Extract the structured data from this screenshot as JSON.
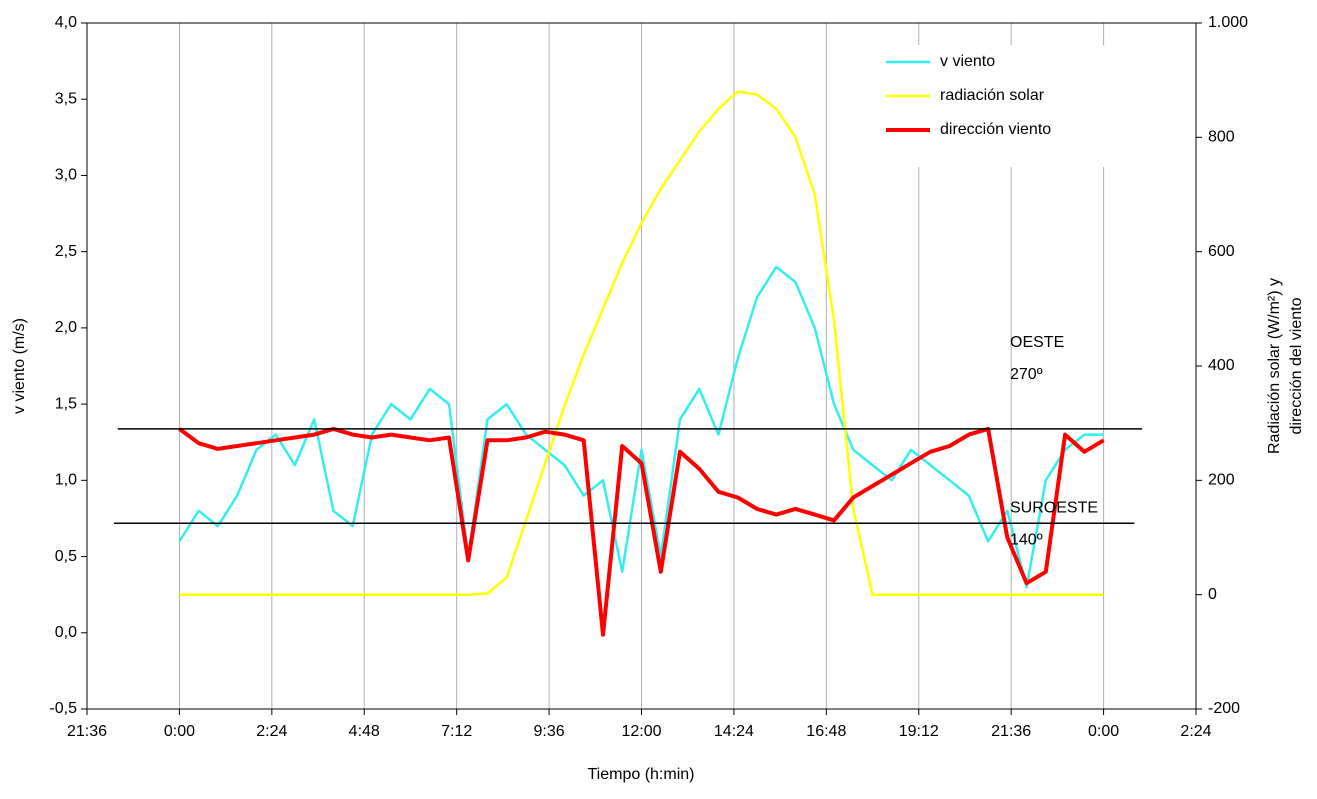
{
  "chart_data": {
    "type": "line",
    "x": [
      0,
      0.5,
      1,
      1.5,
      2,
      2.5,
      3,
      3.5,
      4,
      4.5,
      5,
      5.5,
      6,
      6.5,
      7,
      7.5,
      8,
      8.5,
      9,
      9.5,
      10,
      10.5,
      11,
      11.5,
      12,
      12.5,
      13,
      13.5,
      14,
      14.5,
      15,
      15.5,
      16,
      16.5,
      17,
      17.5,
      18,
      18.5,
      19,
      19.5,
      20,
      20.5,
      21,
      21.5,
      22,
      22.5,
      23,
      23.5,
      24
    ],
    "series": [
      {
        "name": "v viento",
        "color": "#33eeee",
        "values": [
          0.6,
          0.8,
          0.7,
          0.9,
          1.2,
          1.3,
          1.1,
          1.4,
          0.8,
          0.7,
          1.3,
          1.5,
          1.4,
          1.6,
          1.5,
          0.5,
          1.4,
          1.5,
          1.3,
          1.2,
          1.1,
          0.9,
          1.0,
          0.4,
          1.2,
          0.5,
          1.4,
          1.6,
          1.3,
          1.8,
          2.2,
          2.4,
          2.3,
          2.0,
          1.5,
          1.2,
          1.1,
          1.0,
          1.2,
          1.1,
          1.0,
          0.9,
          0.6,
          0.8,
          0.3,
          1.0,
          1.2,
          1.3,
          1.3
        ]
      },
      {
        "name": "radiación solar",
        "color": "#ffff00",
        "axis": "y2",
        "values": [
          0,
          0,
          0,
          0,
          0,
          0,
          0,
          0,
          0,
          0,
          0,
          0,
          0,
          0,
          0,
          0,
          2,
          30,
          130,
          230,
          330,
          420,
          500,
          580,
          650,
          710,
          760,
          810,
          850,
          880,
          875,
          850,
          800,
          700,
          480,
          150,
          0,
          0,
          0,
          0,
          0,
          0,
          0,
          0,
          0,
          0,
          0,
          0,
          0
        ]
      },
      {
        "name": "dirección viento",
        "color": "#ff0000",
        "axis": "y2",
        "values": [
          290,
          265,
          255,
          260,
          265,
          270,
          275,
          280,
          290,
          280,
          275,
          280,
          275,
          270,
          275,
          60,
          270,
          270,
          275,
          285,
          280,
          270,
          -70,
          260,
          230,
          40,
          250,
          220,
          180,
          170,
          150,
          140,
          150,
          140,
          130,
          170,
          190,
          210,
          230,
          250,
          260,
          280,
          290,
          100,
          20,
          40,
          280,
          250,
          270
        ]
      }
    ],
    "xlabel": "Tiempo (h:min)",
    "ylabel": "v viento (m/s)",
    "y2label": [
      "Radiación solar (W/m²) y",
      "dirección del viento"
    ],
    "xlim": [
      -2.4,
      26.4
    ],
    "xticks": [
      {
        "value": -2.4,
        "label": "21:36"
      },
      {
        "value": 0,
        "label": "0:00"
      },
      {
        "value": 2.4,
        "label": "2:24"
      },
      {
        "value": 4.8,
        "label": "4:48"
      },
      {
        "value": 7.2,
        "label": "7:12"
      },
      {
        "value": 9.6,
        "label": "9:36"
      },
      {
        "value": 12,
        "label": "12:00"
      },
      {
        "value": 14.4,
        "label": "14:24"
      },
      {
        "value": 16.8,
        "label": "16:48"
      },
      {
        "value": 19.2,
        "label": "19:12"
      },
      {
        "value": 21.6,
        "label": "21:36"
      },
      {
        "value": 24,
        "label": "0:00"
      },
      {
        "value": 26.4,
        "label": "2:24"
      }
    ],
    "ylim": [
      -0.5,
      4.0
    ],
    "yticks": [
      {
        "value": -0.5,
        "label": "-0,5"
      },
      {
        "value": 0,
        "label": "0,0"
      },
      {
        "value": 0.5,
        "label": "0,5"
      },
      {
        "value": 1.0,
        "label": "1,0"
      },
      {
        "value": 1.5,
        "label": "1,5"
      },
      {
        "value": 2.0,
        "label": "2,0"
      },
      {
        "value": 2.5,
        "label": "2,5"
      },
      {
        "value": 3.0,
        "label": "3,0"
      },
      {
        "value": 3.5,
        "label": "3,5"
      },
      {
        "value": 4.0,
        "label": "4,0"
      }
    ],
    "y2lim": [
      -200,
      1000
    ],
    "y2ticks": [
      -200,
      0,
      200,
      400,
      600,
      800,
      {
        "value": 1000,
        "label": "1.000"
      }
    ],
    "grid": "x",
    "legend": "upper right",
    "reference_lines": [
      {
        "value": 290,
        "x_range": [
          -1.6,
          25.0
        ],
        "labels": [
          "OESTE",
          "270º"
        ]
      },
      {
        "value": 125,
        "x_range": [
          -1.7,
          24.8
        ],
        "labels": [
          "SUROESTE",
          "140º"
        ]
      }
    ]
  }
}
